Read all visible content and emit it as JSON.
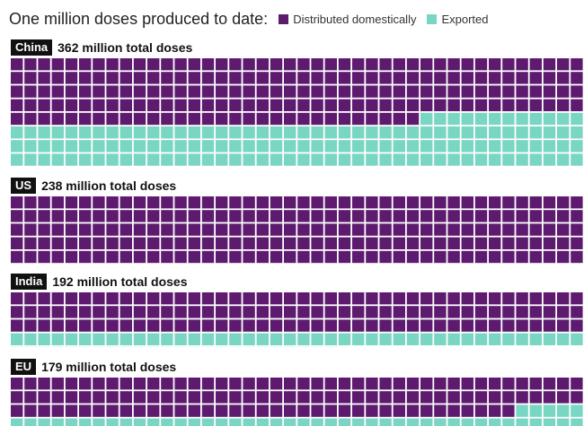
{
  "chart_data": {
    "type": "waffle",
    "unit_label": "One million doses produced to date:",
    "legend": [
      {
        "key": "domestic",
        "label": "Distributed domestically",
        "color": "#5e1a6e"
      },
      {
        "key": "exported",
        "label": "Exported",
        "color": "#79d6c2"
      }
    ],
    "countries": [
      {
        "name": "China",
        "total_label": "362 million total doses",
        "total": 362,
        "domestic": 198,
        "exported": 164
      },
      {
        "name": "US",
        "total_label": "238 million total doses",
        "total": 238,
        "domestic": 235,
        "exported": 3
      },
      {
        "name": "India",
        "total_label": "192 million total doses",
        "total": 192,
        "domestic": 126,
        "exported": 66
      },
      {
        "name": "EU",
        "total_label": "179 million total doses",
        "total": 179,
        "domestic": 121,
        "exported": 58
      }
    ]
  }
}
